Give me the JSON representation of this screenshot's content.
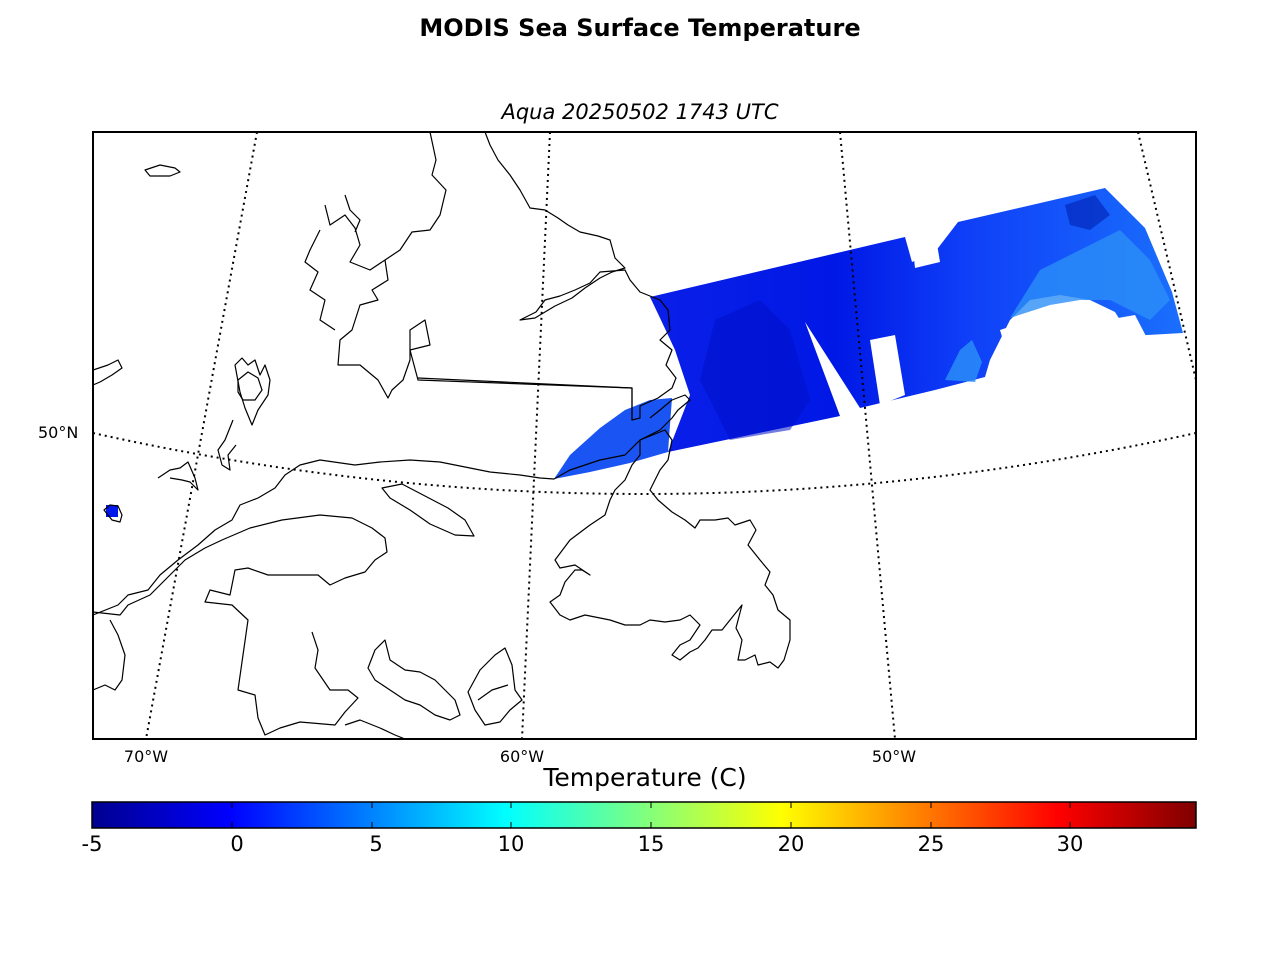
{
  "figure": {
    "title": "MODIS Sea Surface Temperature",
    "subtitle": "Aqua 20250502 1743 UTC"
  },
  "map": {
    "latitude_labels": [
      "50°N"
    ],
    "longitude_labels": [
      "70°W",
      "60°W",
      "50°W"
    ],
    "graticule_style": "dotted",
    "coastline_color": "#000000"
  },
  "colorbar": {
    "title": "Temperature (C)",
    "colormap": "jet",
    "min": -5,
    "max": 34.5,
    "ticks": [
      "-5",
      "0",
      "5",
      "10",
      "15",
      "20",
      "25",
      "30"
    ]
  },
  "chart_data": {
    "type": "heatmap",
    "title": "MODIS Sea Surface Temperature",
    "subtitle": "Aqua 20250502 1743 UTC",
    "colorbar_label": "Temperature (C)",
    "value_range": [
      -5,
      34.5
    ],
    "observed_range_estimate": [
      -2,
      7
    ],
    "dominant_value_estimate": 0
  }
}
